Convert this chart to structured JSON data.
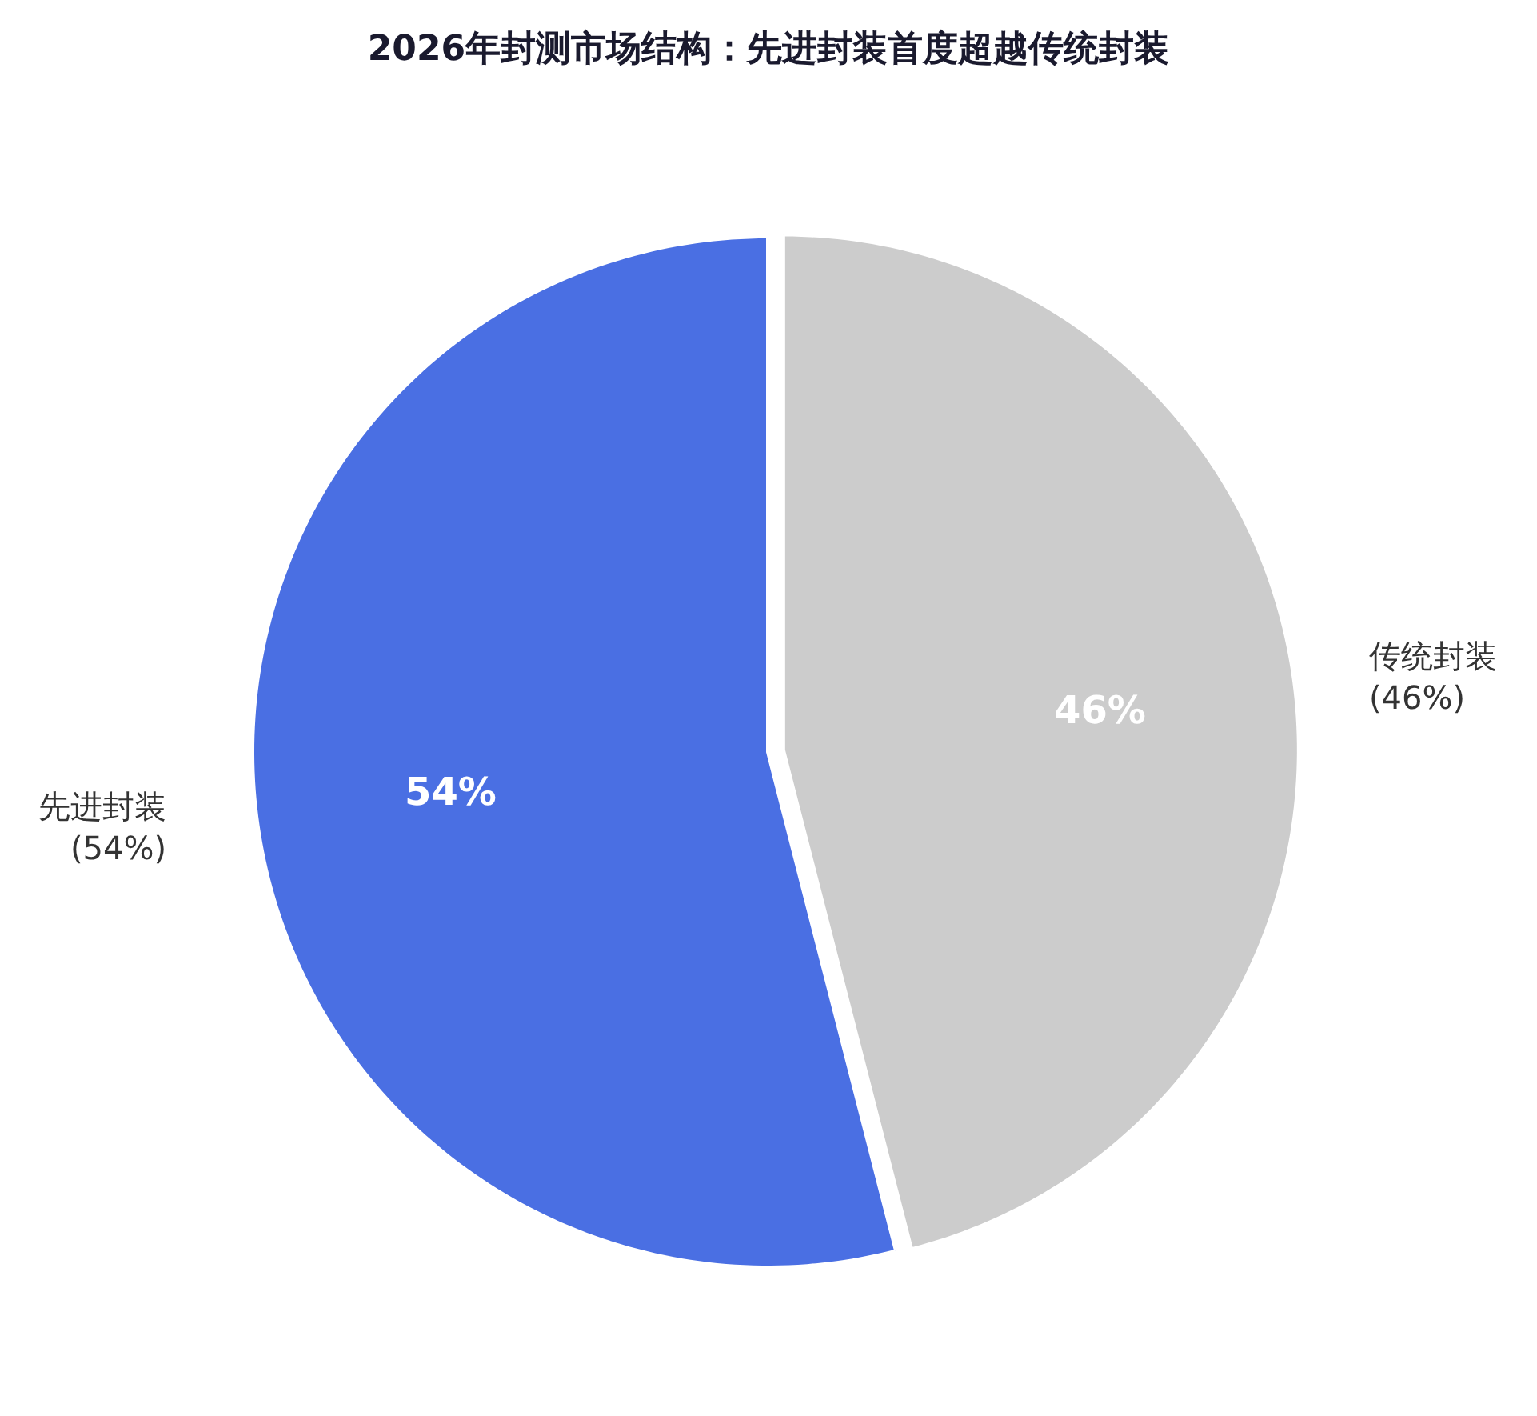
{
  "chart_data": {
    "type": "pie",
    "title": "2026年封测市场结构：先进封装首度超越传统封装",
    "categories": [
      "传统封装",
      "先进封装"
    ],
    "values": [
      46,
      54
    ],
    "colors": [
      "#cccccc",
      "#4a6fe3"
    ],
    "value_labels": [
      "46%",
      "54%"
    ],
    "annotations": [
      "(46%)",
      "(54%)"
    ],
    "legend": false
  }
}
